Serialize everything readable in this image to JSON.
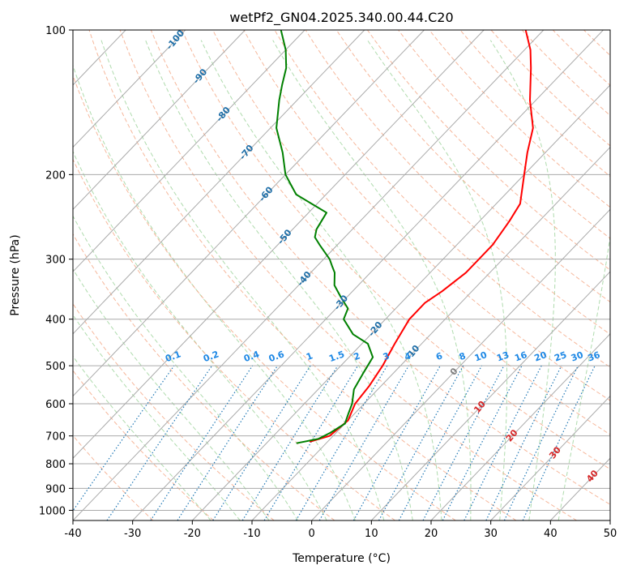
{
  "chart_data": {
    "type": "line",
    "diagram": "skew-t",
    "title": "wetPf2_GN04.2025.340.00.44.C20",
    "xlabel": "Temperature (°C)",
    "ylabel": "Pressure (hPa)",
    "xlim": [
      -40,
      50
    ],
    "ylim": [
      1050,
      100
    ],
    "y_scale": "log",
    "x_ticks": [
      "-40",
      "-30",
      "-20",
      "-10",
      "0",
      "10",
      "20",
      "30",
      "40",
      "50"
    ],
    "x_tick_values": [
      -40,
      -30,
      -20,
      -10,
      0,
      10,
      20,
      30,
      40,
      50
    ],
    "y_ticks": [
      "100",
      "200",
      "300",
      "400",
      "500",
      "600",
      "700",
      "800",
      "900",
      "1000"
    ],
    "y_tick_values": [
      100,
      200,
      300,
      400,
      500,
      600,
      700,
      800,
      900,
      1000
    ],
    "grid": true,
    "series": [
      {
        "color": "#ff0000",
        "points": [
          [
            720,
            -13.0
          ],
          [
            700,
            -10.6
          ],
          [
            650,
            -10.0
          ],
          [
            600,
            -11.5
          ],
          [
            550,
            -12.0
          ],
          [
            500,
            -13.0
          ],
          [
            450,
            -14.5
          ],
          [
            400,
            -16.0
          ],
          [
            370,
            -16.0
          ],
          [
            350,
            -15.0
          ],
          [
            320,
            -14.0
          ],
          [
            300,
            -14.0
          ],
          [
            280,
            -14.0
          ],
          [
            250,
            -15.0
          ],
          [
            230,
            -16.0
          ],
          [
            200,
            -20.0
          ],
          [
            180,
            -23.0
          ],
          [
            160,
            -26.0
          ],
          [
            140,
            -31.0
          ],
          [
            120,
            -36.0
          ],
          [
            110,
            -39.0
          ],
          [
            100,
            -43.0
          ]
        ]
      },
      {
        "color": "#008000",
        "points": [
          [
            725,
            -15.0
          ],
          [
            710,
            -12.0
          ],
          [
            690,
            -11.0
          ],
          [
            660,
            -10.0
          ],
          [
            630,
            -11.0
          ],
          [
            600,
            -12.0
          ],
          [
            560,
            -14.0
          ],
          [
            520,
            -15.0
          ],
          [
            480,
            -16.0
          ],
          [
            450,
            -19.0
          ],
          [
            430,
            -23.0
          ],
          [
            400,
            -27.0
          ],
          [
            380,
            -28.0
          ],
          [
            360,
            -31.0
          ],
          [
            340,
            -34.0
          ],
          [
            320,
            -36.0
          ],
          [
            310,
            -37.5
          ],
          [
            300,
            -39.0
          ],
          [
            280,
            -43.0
          ],
          [
            270,
            -45.0
          ],
          [
            260,
            -46.0
          ],
          [
            240,
            -47.0
          ],
          [
            220,
            -55.0
          ],
          [
            200,
            -60.0
          ],
          [
            180,
            -64.0
          ],
          [
            160,
            -69.0
          ],
          [
            140,
            -73.0
          ],
          [
            130,
            -75.0
          ],
          [
            120,
            -77.0
          ],
          [
            110,
            -80.0
          ],
          [
            100,
            -84.0
          ]
        ]
      }
    ],
    "isotherm_labels": [
      "-100",
      "-90",
      "-80",
      "-70",
      "-60",
      "-50",
      "-40",
      "-30",
      "-20",
      "-10"
    ],
    "isotherm_label_values": [
      -100,
      -90,
      -80,
      -70,
      -60,
      -50,
      -40,
      -30,
      -20,
      -10
    ],
    "mixing_ratio_labels": [
      "0.1",
      "0.2",
      "0.4",
      "0.6",
      "1",
      "1.5",
      "2",
      "3",
      "4",
      "6",
      "8",
      "10",
      "13",
      "16",
      "20",
      "25",
      "30",
      "36"
    ],
    "mixing_ratio_values": [
      0.1,
      0.2,
      0.4,
      0.6,
      1,
      1.5,
      2,
      3,
      4,
      6,
      8,
      10,
      13,
      16,
      20,
      25,
      30,
      36
    ],
    "warm_isotherm_labels": [
      "0",
      "10",
      "20",
      "30",
      "40"
    ],
    "warm_isotherm_values": [
      0,
      10,
      20,
      30,
      40
    ],
    "colors": {
      "isotherm": "#aaaaaa",
      "isobar": "#aaaaaa",
      "dry_adiabat": "#f4a582",
      "moist_adiabat": "#a6d7a4",
      "mixing_ratio": "#1f77b4",
      "cold_label": "#1f6fa8",
      "mixing_label": "#1e88e5",
      "zero_label": "#808080",
      "warm_label": "#d62728"
    }
  }
}
